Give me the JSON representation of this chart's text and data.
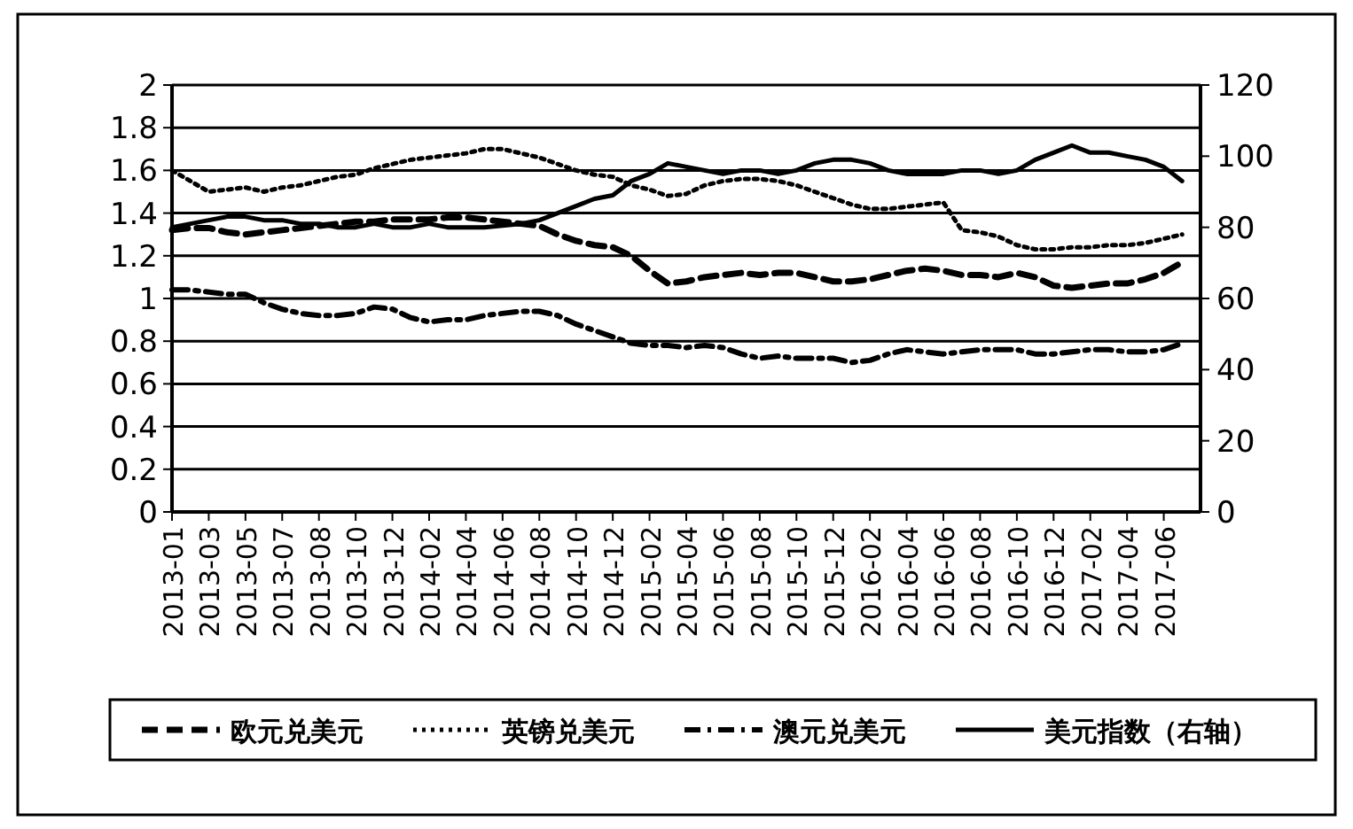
{
  "chart_data": {
    "type": "line",
    "categories": [
      "2013-01",
      null,
      "2013-03",
      null,
      "2013-05",
      null,
      "2013-07",
      null,
      "2013-08",
      null,
      "2013-10",
      null,
      "2013-12",
      null,
      "2014-02",
      null,
      "2014-04",
      null,
      "2014-06",
      null,
      "2014-08",
      null,
      "2014-10",
      null,
      "2014-12",
      null,
      "2015-02",
      null,
      "2015-04",
      null,
      "2015-06",
      null,
      "2015-08",
      null,
      "2015-10",
      null,
      "2015-12",
      null,
      "2016-02",
      null,
      "2016-04",
      null,
      "2016-06",
      null,
      "2016-08",
      null,
      "2016-10",
      null,
      "2016-12",
      null,
      "2017-02",
      null,
      "2017-04",
      null,
      "2017-06",
      null
    ],
    "series": [
      {
        "name": "欧元兑美元",
        "color": "#000000",
        "line_style": "dashed",
        "values": [
          1.32,
          1.33,
          1.33,
          1.31,
          1.3,
          1.31,
          1.32,
          1.33,
          1.34,
          1.35,
          1.36,
          1.36,
          1.37,
          1.37,
          1.37,
          1.38,
          1.38,
          1.37,
          1.36,
          1.35,
          1.34,
          1.3,
          1.27,
          1.25,
          1.24,
          1.2,
          1.13,
          1.07,
          1.08,
          1.1,
          1.11,
          1.12,
          1.11,
          1.12,
          1.12,
          1.1,
          1.08,
          1.08,
          1.09,
          1.11,
          1.13,
          1.14,
          1.13,
          1.11,
          1.11,
          1.1,
          1.12,
          1.1,
          1.06,
          1.05,
          1.06,
          1.07,
          1.07,
          1.09,
          1.12,
          1.17
        ]
      },
      {
        "name": "英镑兑美元",
        "color": "#000000",
        "line_style": "dotted",
        "values": [
          1.6,
          1.55,
          1.5,
          1.51,
          1.52,
          1.5,
          1.52,
          1.53,
          1.55,
          1.57,
          1.58,
          1.61,
          1.63,
          1.65,
          1.66,
          1.67,
          1.68,
          1.7,
          1.7,
          1.68,
          1.66,
          1.63,
          1.6,
          1.58,
          1.57,
          1.53,
          1.51,
          1.48,
          1.49,
          1.53,
          1.55,
          1.56,
          1.56,
          1.55,
          1.53,
          1.5,
          1.47,
          1.44,
          1.42,
          1.42,
          1.43,
          1.44,
          1.45,
          1.32,
          1.31,
          1.29,
          1.25,
          1.23,
          1.23,
          1.24,
          1.24,
          1.25,
          1.25,
          1.26,
          1.28,
          1.3
        ]
      },
      {
        "name": "澳元兑美元",
        "color": "#000000",
        "line_style": "dashdot",
        "values": [
          1.04,
          1.04,
          1.03,
          1.02,
          1.02,
          0.98,
          0.95,
          0.93,
          0.92,
          0.92,
          0.93,
          0.96,
          0.95,
          0.91,
          0.89,
          0.9,
          0.9,
          0.92,
          0.93,
          0.94,
          0.94,
          0.92,
          0.88,
          0.85,
          0.82,
          0.79,
          0.78,
          0.78,
          0.77,
          0.78,
          0.77,
          0.74,
          0.72,
          0.73,
          0.72,
          0.72,
          0.72,
          0.7,
          0.71,
          0.74,
          0.76,
          0.75,
          0.74,
          0.75,
          0.76,
          0.76,
          0.76,
          0.74,
          0.74,
          0.75,
          0.76,
          0.76,
          0.75,
          0.75,
          0.76,
          0.79
        ]
      },
      {
        "name": "美元指数（右轴）",
        "color": "#000000",
        "line_style": "solid",
        "axis": "y2",
        "values": [
          80,
          81,
          82,
          83,
          83,
          82,
          82,
          81,
          81,
          80,
          80,
          81,
          80,
          80,
          81,
          80,
          80,
          80,
          80.5,
          81,
          82,
          84,
          86,
          88,
          89,
          93,
          95,
          98,
          97,
          96,
          95,
          96,
          96,
          95,
          96,
          98,
          99,
          99,
          98,
          96,
          95,
          95,
          95,
          96,
          96,
          95,
          96,
          99,
          101,
          103,
          101,
          101,
          100,
          99,
          97,
          93
        ]
      }
    ],
    "ylim": [
      0,
      2
    ],
    "yticks": [
      0,
      0.2,
      0.4,
      0.6,
      0.8,
      1,
      1.2,
      1.4,
      1.6,
      1.8,
      2
    ],
    "y2lim": [
      0,
      120
    ],
    "y2ticks": [
      0,
      20,
      40,
      60,
      80,
      100,
      120
    ],
    "grid": "y",
    "legend": "bottom"
  }
}
